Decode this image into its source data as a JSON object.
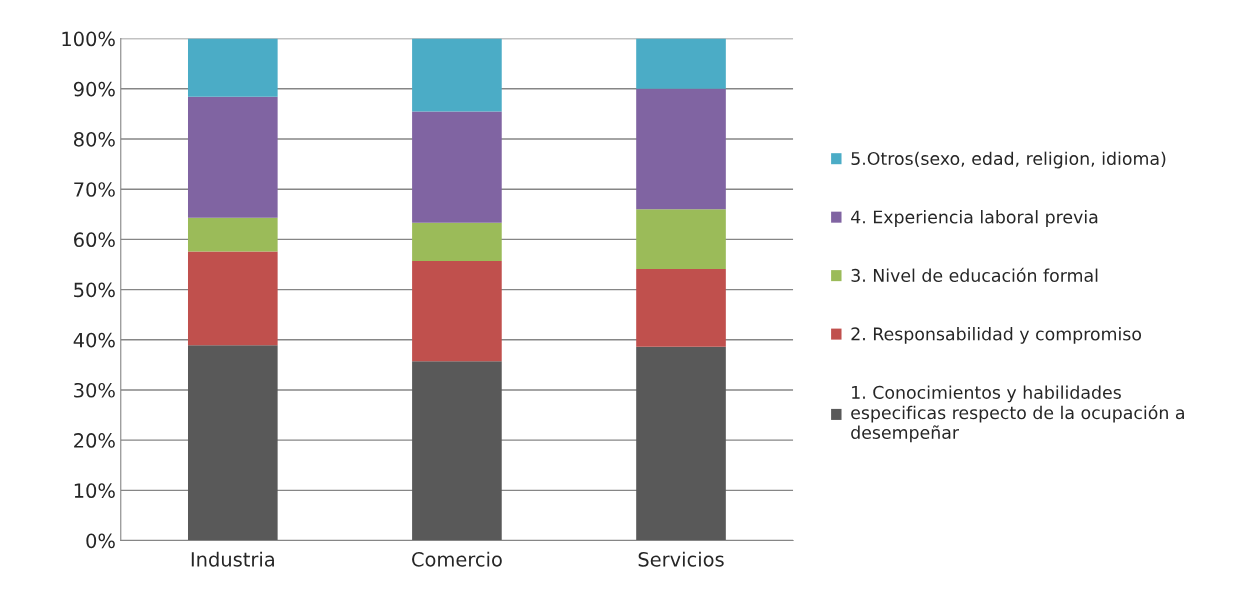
{
  "chart_data": {
    "type": "bar",
    "stacked": true,
    "categories": [
      "Industria",
      "Comercio",
      "Servicios"
    ],
    "series": [
      {
        "name": "1. Conocimientos y habilidades\nespecificas respecto de la ocupación a\ndesempeñar",
        "color": "#595959",
        "values": [
          38.9,
          35.7,
          38.6
        ]
      },
      {
        "name": "2. Responsabilidad y compromiso",
        "color": "#c0504d",
        "values": [
          18.7,
          20.0,
          15.5
        ]
      },
      {
        "name": "3. Nivel de educación formal",
        "color": "#9bbb59",
        "values": [
          6.7,
          7.6,
          11.9
        ]
      },
      {
        "name": "4. Experiencia laboral previa",
        "color": "#8064a2",
        "values": [
          24.1,
          22.2,
          24.0
        ]
      },
      {
        "name": "5.Otros(sexo, edad, religion, idioma)",
        "color": "#4bacc6",
        "values": [
          11.6,
          14.5,
          10.0
        ]
      }
    ],
    "ylim": [
      0,
      100
    ],
    "yticks": [
      {
        "value": 0,
        "label": "0%"
      },
      {
        "value": 10,
        "label": "10%"
      },
      {
        "value": 20,
        "label": "20%"
      },
      {
        "value": 30,
        "label": "30%"
      },
      {
        "value": 40,
        "label": "40%"
      },
      {
        "value": 50,
        "label": "50%"
      },
      {
        "value": 60,
        "label": "60%"
      },
      {
        "value": 70,
        "label": "70%"
      },
      {
        "value": 80,
        "label": "80%"
      },
      {
        "value": 90,
        "label": "90%"
      },
      {
        "value": 100,
        "label": "100%"
      }
    ],
    "grid": "y",
    "legend": "right"
  }
}
